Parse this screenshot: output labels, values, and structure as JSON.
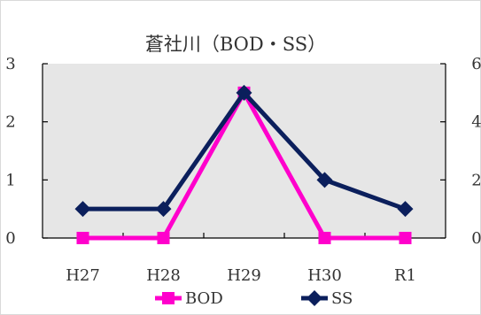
{
  "chart_data": {
    "type": "line",
    "title": "蒼社川（BOD・SS）",
    "categories": [
      "H27",
      "H28",
      "H29",
      "H30",
      "R1"
    ],
    "y_left": {
      "min": 0,
      "max": 3,
      "ticks": [
        "0",
        "1",
        "2",
        "3"
      ]
    },
    "y_right": {
      "min": 0,
      "max": 6,
      "ticks": [
        "0",
        "2",
        "4",
        "6"
      ]
    },
    "plot_background": "#e6e6e6",
    "legend_position": "bottom",
    "series": [
      {
        "name": "BOD",
        "axis": "left",
        "color": "#ff00cc",
        "marker": "square",
        "values": [
          0,
          0,
          2.5,
          0,
          0
        ]
      },
      {
        "name": "SS",
        "axis": "right",
        "color": "#0b1f5c",
        "marker": "diamond",
        "values": [
          1,
          1,
          5,
          2,
          1
        ]
      }
    ]
  }
}
